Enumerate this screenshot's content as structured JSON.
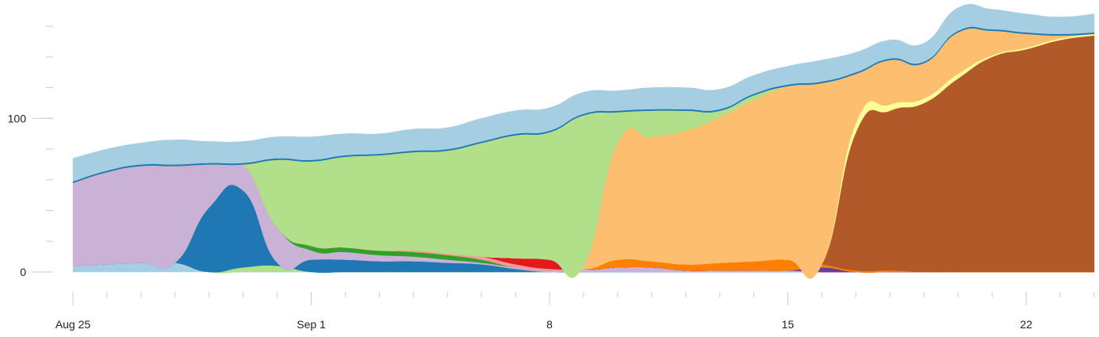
{
  "chart_data": {
    "type": "area",
    "stacked": true,
    "title": "",
    "xlabel": "",
    "ylabel": "",
    "ylim": [
      0,
      175
    ],
    "xlim": [
      "2024-08-25",
      "2024-09-24"
    ],
    "x_ticks": [
      {
        "date": "2024-08-25",
        "label": "Aug 25"
      },
      {
        "date": "2024-09-01",
        "label": "Sep 1"
      },
      {
        "date": "2024-09-08",
        "label": "8"
      },
      {
        "date": "2024-09-15",
        "label": "15"
      },
      {
        "date": "2024-09-22",
        "label": "22"
      }
    ],
    "y_ticks": [
      {
        "value": 0,
        "label": "0"
      },
      {
        "value": 100,
        "label": "100"
      }
    ],
    "x": [
      "2024-08-25",
      "2024-08-26",
      "2024-08-27",
      "2024-08-28",
      "2024-08-29",
      "2024-08-30",
      "2024-08-31",
      "2024-09-01",
      "2024-09-02",
      "2024-09-03",
      "2024-09-04",
      "2024-09-05",
      "2024-09-06",
      "2024-09-07",
      "2024-09-08",
      "2024-09-09",
      "2024-09-10",
      "2024-09-11",
      "2024-09-12",
      "2024-09-13",
      "2024-09-14",
      "2024-09-15",
      "2024-09-16",
      "2024-09-17",
      "2024-09-18",
      "2024-09-19",
      "2024-09-20",
      "2024-09-21",
      "2024-09-22",
      "2024-09-23",
      "2024-09-24"
    ],
    "series": [
      {
        "color": "#a6cee3",
        "values": [
          4,
          5,
          6,
          6,
          0,
          0,
          0,
          0,
          0,
          0,
          0,
          0,
          0,
          0,
          0,
          0,
          0,
          0,
          0,
          0,
          0,
          0,
          0,
          0,
          0,
          0,
          0,
          0,
          0,
          0,
          0
        ]
      },
      {
        "color": "#b2df8a",
        "values": [
          0,
          0,
          0,
          0,
          0,
          3,
          4,
          0,
          0,
          0,
          0,
          0,
          0,
          0,
          0,
          0,
          0,
          0,
          0,
          0,
          0,
          0,
          0,
          0,
          0,
          0,
          0,
          0,
          0,
          0,
          0
        ]
      },
      {
        "color": "#1f78b4",
        "values": [
          0,
          0,
          0,
          0,
          42,
          50,
          2,
          8,
          8,
          7,
          7,
          6,
          5,
          2,
          0,
          0,
          0,
          0,
          0,
          0,
          0,
          0,
          0,
          0,
          0,
          0,
          0,
          0,
          0,
          0,
          0
        ]
      },
      {
        "color": "#cab2d6",
        "values": [
          54,
          60,
          63,
          63,
          28,
          17,
          23,
          6,
          5,
          4,
          3,
          2,
          1,
          1,
          1,
          2,
          3,
          3,
          1,
          1,
          1,
          1,
          0,
          0,
          0,
          0,
          0,
          0,
          0,
          0,
          0
        ]
      },
      {
        "color": "#33a02c",
        "values": [
          0,
          0,
          0,
          0,
          0,
          0,
          0,
          3,
          3,
          3,
          3,
          3,
          2,
          0,
          0,
          0,
          0,
          0,
          0,
          0,
          0,
          0,
          0,
          0,
          0,
          0,
          0,
          0,
          0,
          0,
          0
        ]
      },
      {
        "color": "#fb9a99",
        "values": [
          0,
          0,
          0,
          0,
          0,
          0,
          0,
          0,
          0,
          0,
          1,
          1,
          2,
          2,
          1,
          0,
          0,
          0,
          0,
          0,
          0,
          0,
          0,
          0,
          0,
          0,
          0,
          0,
          0,
          0,
          0
        ]
      },
      {
        "color": "#e31a1c",
        "values": [
          0,
          0,
          0,
          0,
          0,
          0,
          0,
          0,
          0,
          0,
          0,
          0,
          0,
          4,
          6,
          0,
          0,
          0,
          0,
          0,
          0,
          0,
          0,
          0,
          0,
          0,
          0,
          0,
          0,
          0,
          0
        ]
      },
      {
        "color": "#6a3d9a",
        "values": [
          0,
          0,
          0,
          0,
          0,
          0,
          0,
          0,
          0,
          0,
          0,
          0,
          0,
          0,
          0,
          0,
          0,
          0,
          0,
          0,
          0,
          0,
          3,
          0,
          0,
          0,
          0,
          0,
          0,
          0,
          0
        ]
      },
      {
        "color": "#ff7f00",
        "values": [
          0,
          0,
          0,
          0,
          0,
          0,
          0,
          0,
          0,
          0,
          0,
          0,
          0,
          0,
          0,
          0,
          5,
          4,
          4,
          5,
          6,
          7,
          2,
          1,
          1,
          0,
          0,
          0,
          0,
          0,
          0
        ]
      },
      {
        "color": "#b15928",
        "values": [
          0,
          0,
          0,
          0,
          0,
          0,
          0,
          0,
          0,
          0,
          0,
          0,
          0,
          0,
          0,
          0,
          0,
          0,
          0,
          0,
          0,
          0,
          0,
          90,
          104,
          110,
          126,
          140,
          145,
          151,
          154
        ]
      },
      {
        "color": "#ffff99",
        "values": [
          0,
          0,
          0,
          0,
          0,
          0,
          0,
          0,
          0,
          0,
          0,
          0,
          0,
          0,
          0,
          0,
          0,
          0,
          0,
          0,
          0,
          0,
          0,
          6,
          4,
          3,
          3,
          1,
          1,
          1,
          1
        ]
      },
      {
        "color": "#fdbf6f",
        "values": [
          0,
          0,
          0,
          0,
          0,
          0,
          0,
          0,
          0,
          0,
          0,
          0,
          0,
          0,
          0,
          2,
          76,
          81,
          87,
          95,
          105,
          113,
          118,
          32,
          29,
          23,
          27,
          16,
          9,
          2,
          0
        ]
      },
      {
        "color": "#b2df8a",
        "values": [
          0,
          0,
          0,
          0,
          0,
          0,
          44,
          55,
          59,
          62,
          64,
          67,
          74,
          80,
          83,
          98,
          20,
          17,
          13,
          4,
          3,
          0,
          0,
          0,
          0,
          0,
          0,
          0,
          0,
          0,
          0
        ]
      },
      {
        "color": "#1f78b4",
        "values": [
          1,
          1,
          1,
          1,
          1,
          1,
          1,
          1,
          1,
          1,
          1,
          1,
          1,
          1,
          1,
          1,
          1,
          1,
          1,
          1,
          1,
          1,
          1,
          1,
          1,
          1,
          1,
          1,
          1,
          1,
          1
        ]
      },
      {
        "color": "#a6cee3",
        "values": [
          15,
          14,
          14,
          16,
          14,
          14,
          14,
          15,
          14,
          13,
          14,
          14,
          15,
          15,
          15,
          14,
          13,
          14,
          14,
          13,
          12,
          12,
          14,
          13,
          12,
          12,
          15,
          13,
          12,
          11,
          12
        ]
      }
    ]
  }
}
